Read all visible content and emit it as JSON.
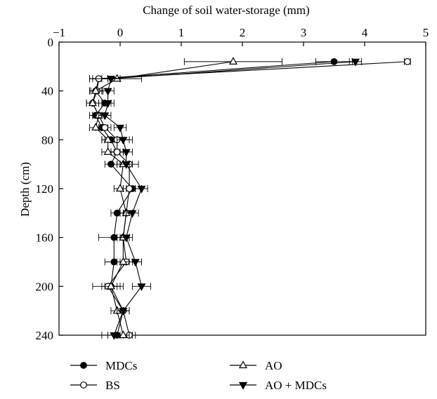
{
  "chart_data": {
    "type": "line",
    "title": "",
    "xlabel": "Change of soil water-storage (mm)",
    "ylabel": "Depth (cm)",
    "xlim": [
      -1,
      5
    ],
    "ylim": [
      0,
      240
    ],
    "y_inverted": true,
    "x_axis_position": "top",
    "x_ticks": [
      -1,
      0,
      1,
      2,
      3,
      4,
      5
    ],
    "x_tick_labels": [
      "−1",
      "0",
      "1",
      "2",
      "3",
      "4",
      "5"
    ],
    "y_ticks": [
      0,
      40,
      80,
      120,
      160,
      200,
      240
    ],
    "y_tick_labels": [
      "0",
      "40",
      "80",
      "120",
      "160",
      "200",
      "240"
    ],
    "grid": false,
    "legend_position": "bottom",
    "depth": [
      16,
      30,
      40,
      50,
      60,
      70,
      80,
      90,
      100,
      120,
      140,
      160,
      180,
      200,
      220,
      240
    ],
    "series": [
      {
        "name": "MDCs",
        "marker": "filled-circle",
        "values": [
          3.5,
          -0.35,
          -0.4,
          -0.25,
          -0.4,
          -0.3,
          -0.15,
          -0.05,
          -0.15,
          0.2,
          -0.05,
          -0.1,
          -0.1,
          -0.15,
          0.05,
          -0.05
        ],
        "errors": [
          0.3,
          0.15,
          0.1,
          0.1,
          0.1,
          0.1,
          0.1,
          0.1,
          0.1,
          0.15,
          0.1,
          0.25,
          0.15,
          0.15,
          0.1,
          0.25
        ]
      },
      {
        "name": "BS",
        "marker": "open-circle",
        "values": [
          4.7,
          -0.35,
          -0.38,
          -0.45,
          -0.35,
          -0.25,
          -0.05,
          -0.05,
          0.15,
          0.15,
          0.1,
          0.05,
          0.1,
          -0.2,
          0.05,
          0.15
        ],
        "errors": [
          0.05,
          0.15,
          0.1,
          0.1,
          0.1,
          0.1,
          0.25,
          0.1,
          0.15,
          0.1,
          0.1,
          0.1,
          0.1,
          0.25,
          0.1,
          0.1
        ]
      },
      {
        "name": "AO",
        "marker": "open-triangle-up",
        "values": [
          1.85,
          -0.05,
          -0.4,
          -0.45,
          -0.35,
          -0.4,
          -0.2,
          -0.2,
          0.05,
          0.0,
          0.1,
          0.05,
          0.05,
          -0.15,
          -0.05,
          0.05
        ],
        "errors": [
          0.8,
          0.4,
          0.1,
          0.1,
          0.1,
          0.1,
          0.1,
          0.1,
          0.1,
          0.1,
          0.1,
          0.1,
          0.1,
          0.1,
          0.1,
          0.1
        ]
      },
      {
        "name": "AO + MDCs",
        "marker": "filled-triangle-down",
        "values": [
          3.85,
          -0.15,
          -0.2,
          -0.2,
          -0.25,
          0.0,
          0.05,
          0.1,
          0.1,
          0.35,
          0.2,
          0.1,
          0.25,
          0.35,
          0.05,
          -0.1
        ],
        "errors": [
          0.1,
          0.15,
          0.1,
          0.1,
          0.1,
          0.1,
          0.1,
          0.1,
          0.1,
          0.1,
          0.1,
          0.1,
          0.1,
          0.15,
          0.1,
          0.1
        ]
      }
    ]
  }
}
